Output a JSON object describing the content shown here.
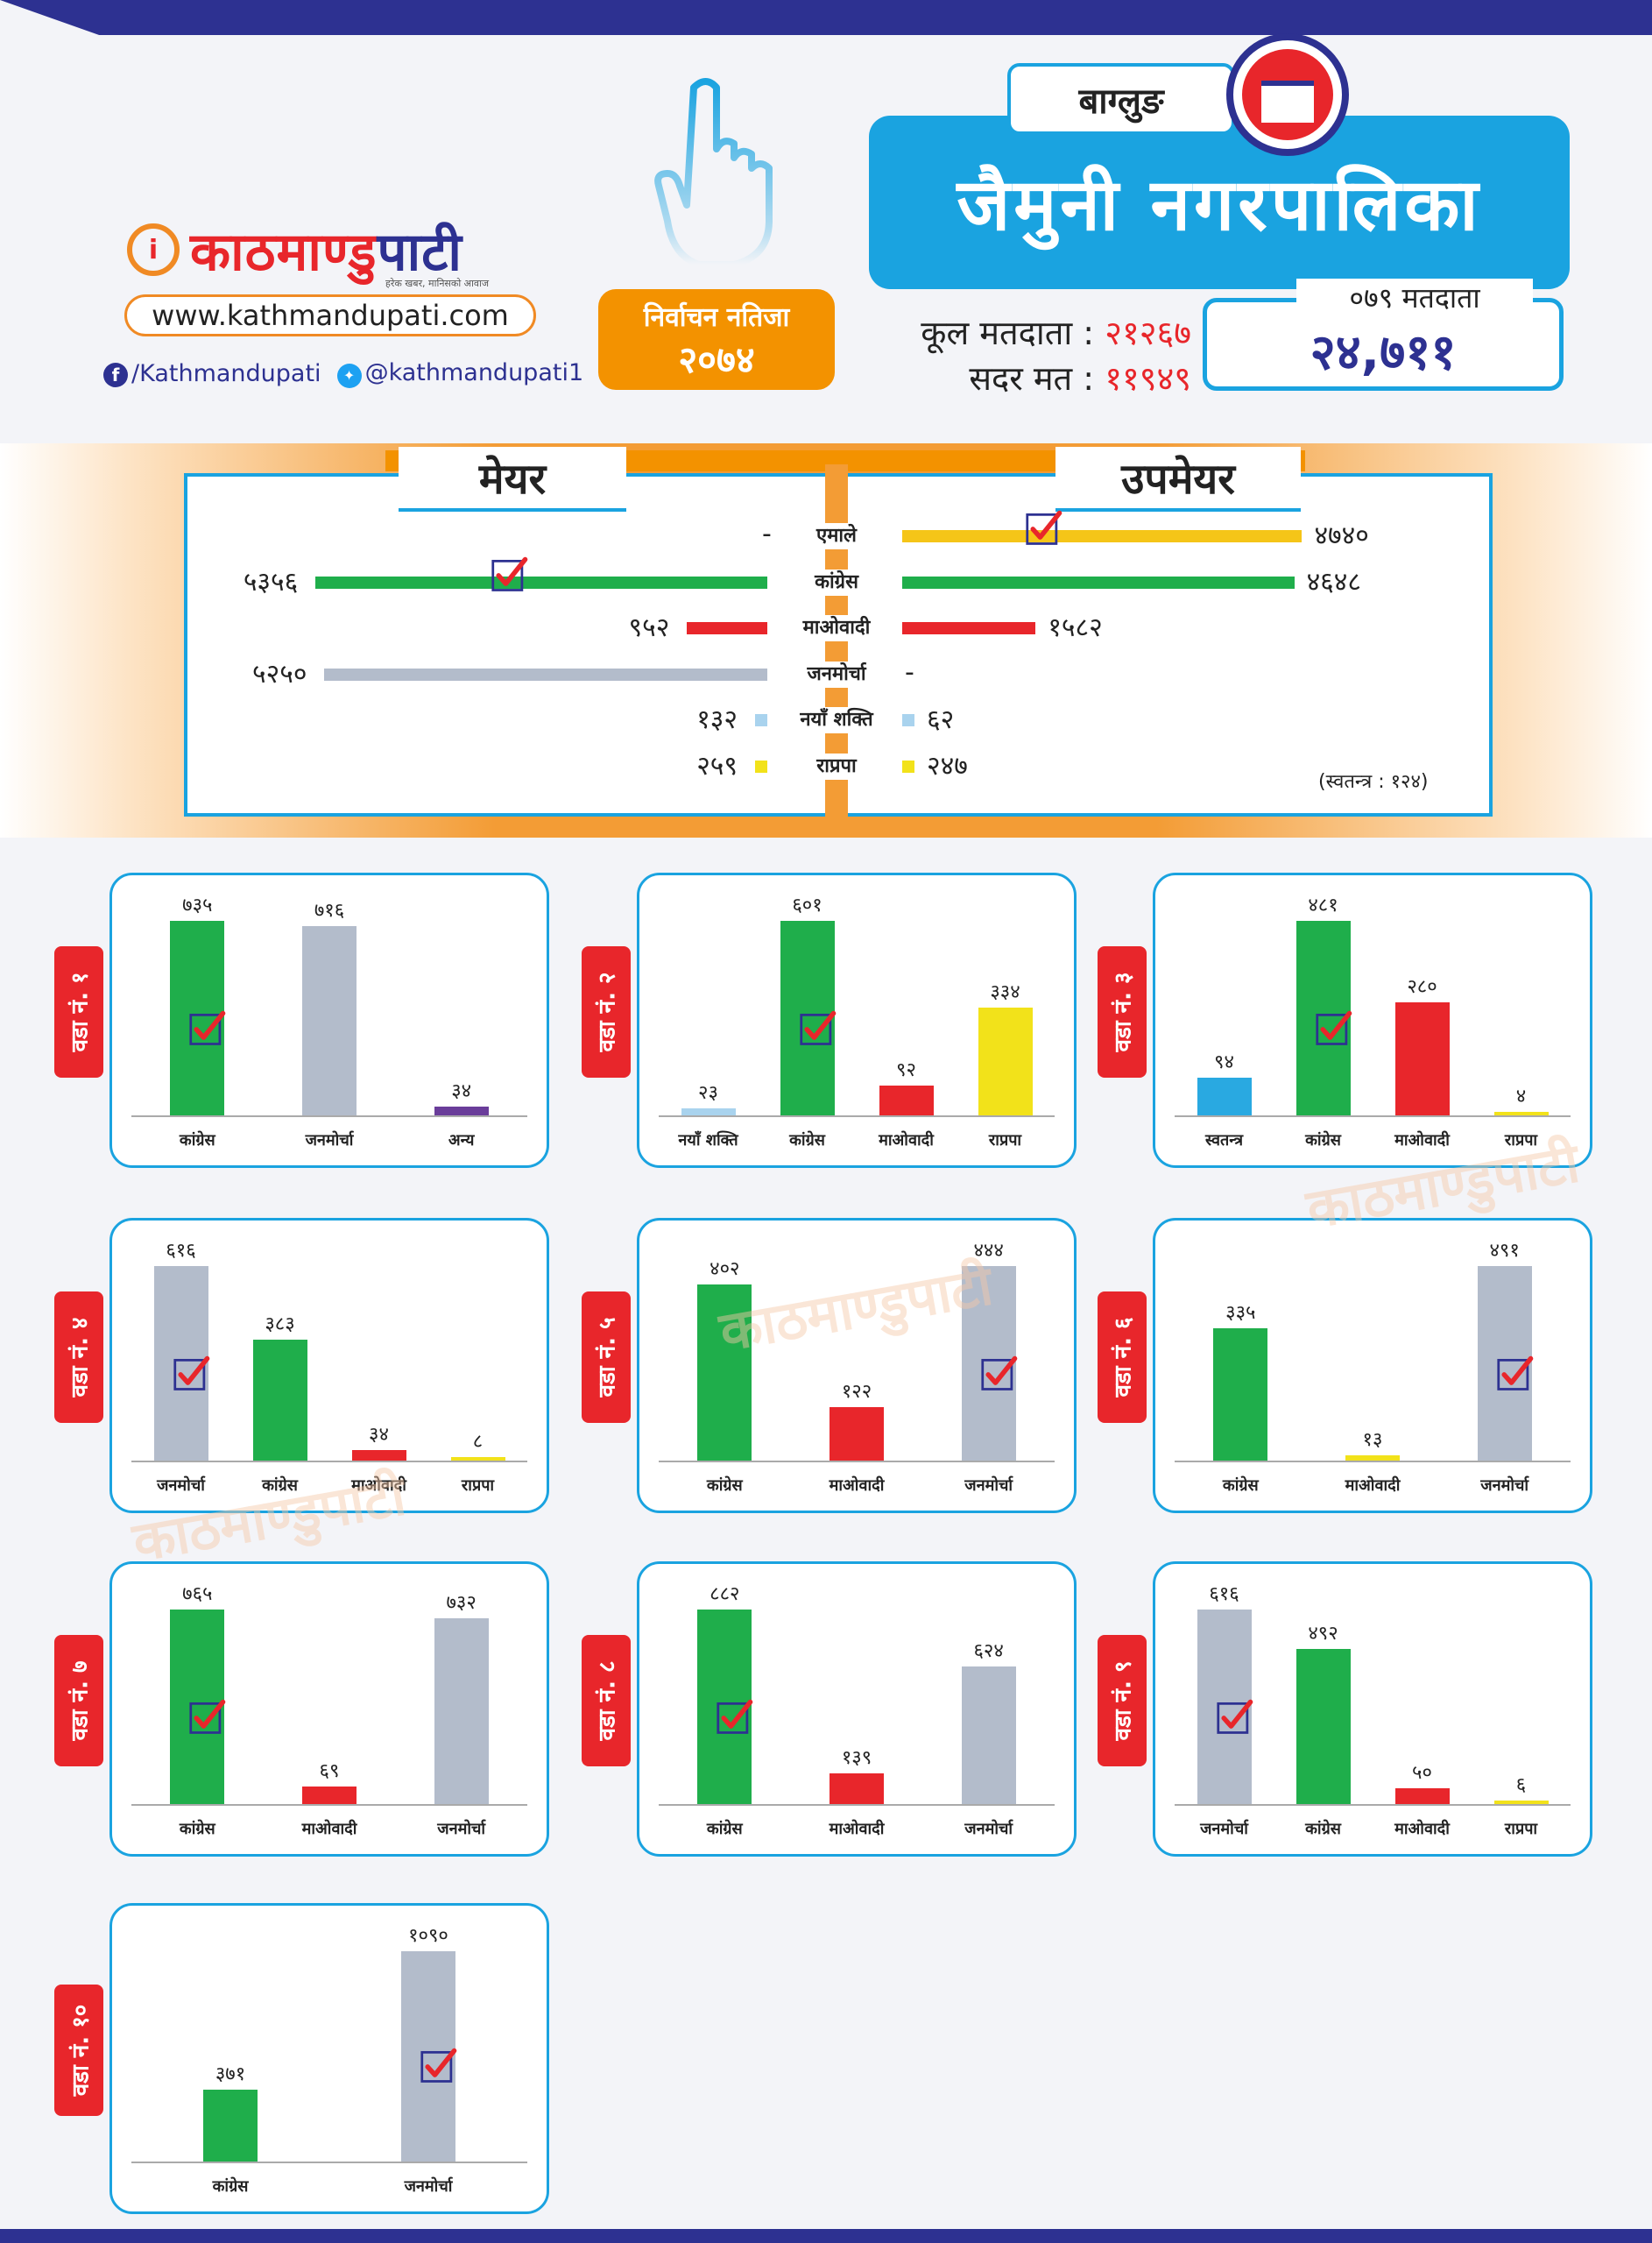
{
  "header": {
    "brand_name_part1": "काठमाण्डु",
    "brand_name_part2": "पाटी",
    "brand_tagline": "हरेक खबर, मानिसको आवाज",
    "website": "www.kathmandupati.com",
    "facebook": "/Kathmandupati",
    "twitter": "@kathmandupati1",
    "badge_line1": "निर्वाचन नतिजा",
    "badge_line2": "२०७४",
    "district": "बाग्लुङ",
    "municipality": "जैमुनी नगरपालिका",
    "total_voters_label": "कूल मतदाता :",
    "total_voters_value": "२१२६७",
    "valid_votes_label": "सदर मत :",
    "valid_votes_value": "११९४९",
    "voters_079_label": "०७९ मतदाता",
    "voters_079_value": "२४,७११"
  },
  "colors": {
    "congress": "#1fae4b",
    "uml": "#f5c518",
    "maoist": "#e8262b",
    "janamorcha": "#b3bccb",
    "naya_shakti": "#a9d3ee",
    "rpp": "#f2e21a",
    "independent": "#29a9e1",
    "other": "#6a3d9a",
    "accent_blue": "#1aa3e0",
    "accent_orange": "#f39200",
    "navy": "#2d3191"
  },
  "chart_data": [
    {
      "type": "bar",
      "title": "मेयर / उपमेयर",
      "left_header": "मेयर",
      "right_header": "उपमेयर",
      "categories": [
        "एमाले",
        "कांग्रेस",
        "माओवादी",
        "जनमोर्चा",
        "नयाँ शक्ति",
        "राप्रपा"
      ],
      "series": [
        {
          "name": "मेयर",
          "values": [
            null,
            5356,
            952,
            5250,
            132,
            259
          ],
          "labels": [
            "-",
            "५३५६",
            "९५२",
            "५२५०",
            "१३२",
            "२५९"
          ],
          "winner": "कांग्रेस"
        },
        {
          "name": "उपमेयर",
          "values": [
            4740,
            4648,
            1582,
            null,
            62,
            247
          ],
          "labels": [
            "४७४०",
            "४६४८",
            "१५८२",
            "-",
            "६२",
            "२४७"
          ],
          "winner": "एमाले"
        }
      ],
      "colors": [
        "uml",
        "congress",
        "maoist",
        "janamorcha",
        "naya_shakti",
        "rpp"
      ],
      "note": "(स्वतन्त्र : १२४)"
    },
    {
      "type": "bar",
      "title": "वडा नं. १",
      "categories": [
        "कांग्रेस",
        "जनमोर्चा",
        "अन्य"
      ],
      "values": [
        735,
        716,
        34
      ],
      "labels": [
        "७३५",
        "७१६",
        "३४"
      ],
      "colors": [
        "congress",
        "janamorcha",
        "other"
      ],
      "winner": 0
    },
    {
      "type": "bar",
      "title": "वडा नं. २",
      "categories": [
        "नयाँ शक्ति",
        "कांग्रेस",
        "माओवादी",
        "राप्रपा"
      ],
      "values": [
        23,
        601,
        92,
        334
      ],
      "labels": [
        "२३",
        "६०१",
        "९२",
        "३३४"
      ],
      "colors": [
        "naya_shakti",
        "congress",
        "maoist",
        "rpp"
      ],
      "winner": 1
    },
    {
      "type": "bar",
      "title": "वडा नं. ३",
      "categories": [
        "स्वतन्त्र",
        "कांग्रेस",
        "माओवादी",
        "राप्रपा"
      ],
      "values": [
        94,
        481,
        280,
        4
      ],
      "labels": [
        "९४",
        "४८१",
        "२८०",
        "४"
      ],
      "colors": [
        "independent",
        "congress",
        "maoist",
        "rpp"
      ],
      "winner": 1
    },
    {
      "type": "bar",
      "title": "वडा नं. ४",
      "categories": [
        "जनमोर्चा",
        "कांग्रेस",
        "माओवादी",
        "राप्रपा"
      ],
      "values": [
        616,
        383,
        34,
        8
      ],
      "labels": [
        "६१६",
        "३८३",
        "३४",
        "८"
      ],
      "colors": [
        "janamorcha",
        "congress",
        "maoist",
        "rpp"
      ],
      "winner": 0
    },
    {
      "type": "bar",
      "title": "वडा नं. ५",
      "categories": [
        "कांग्रेस",
        "माओवादी",
        "जनमोर्चा"
      ],
      "values": [
        402,
        122,
        444
      ],
      "labels": [
        "४०२",
        "१२२",
        "४४४"
      ],
      "colors": [
        "congress",
        "maoist",
        "janamorcha"
      ],
      "winner": 2
    },
    {
      "type": "bar",
      "title": "वडा नं. ६",
      "categories": [
        "कांग्रेस",
        "माओवादी",
        "जनमोर्चा"
      ],
      "values": [
        335,
        13,
        491
      ],
      "labels": [
        "३३५",
        "१३",
        "४९१"
      ],
      "colors": [
        "congress",
        "rpp",
        "janamorcha"
      ],
      "winner": 2
    },
    {
      "type": "bar",
      "title": "वडा नं. ७",
      "categories": [
        "कांग्रेस",
        "माओवादी",
        "जनमोर्चा"
      ],
      "values": [
        765,
        69,
        732
      ],
      "labels": [
        "७६५",
        "६९",
        "७३२"
      ],
      "colors": [
        "congress",
        "maoist",
        "janamorcha"
      ],
      "winner": 0
    },
    {
      "type": "bar",
      "title": "वडा नं. ८",
      "categories": [
        "कांग्रेस",
        "माओवादी",
        "जनमोर्चा"
      ],
      "values": [
        882,
        139,
        624
      ],
      "labels": [
        "८८२",
        "१३९",
        "६२४"
      ],
      "colors": [
        "congress",
        "maoist",
        "janamorcha"
      ],
      "winner": 0
    },
    {
      "type": "bar",
      "title": "वडा नं. ९",
      "categories": [
        "जनमोर्चा",
        "कांग्रेस",
        "माओवादी",
        "राप्रपा"
      ],
      "values": [
        616,
        492,
        50,
        6
      ],
      "labels": [
        "६१६",
        "४९२",
        "५०",
        "६"
      ],
      "colors": [
        "janamorcha",
        "congress",
        "maoist",
        "rpp"
      ],
      "winner": 0
    },
    {
      "type": "bar",
      "title": "वडा नं. १०",
      "categories": [
        "कांग्रेस",
        "जनमोर्चा"
      ],
      "values": [
        371,
        1090
      ],
      "labels": [
        "३७१",
        "१०९०"
      ],
      "colors": [
        "congress",
        "janamorcha"
      ],
      "winner": 1
    }
  ]
}
